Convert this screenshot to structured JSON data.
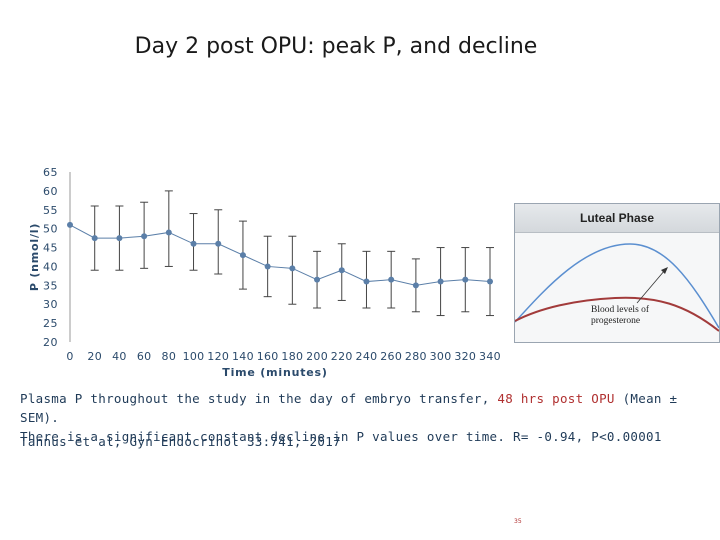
{
  "title": "Day 2 post OPU: peak P, and decline",
  "chart_data": {
    "type": "line",
    "title": "",
    "xlabel": "Time (minutes)",
    "ylabel": "P (nmol/l)",
    "xlim": [
      0,
      340
    ],
    "ylim": [
      20,
      65
    ],
    "xticks": [
      0,
      20,
      40,
      60,
      80,
      100,
      120,
      140,
      160,
      180,
      200,
      220,
      240,
      260,
      280,
      300,
      320,
      340
    ],
    "yticks": [
      20,
      25,
      30,
      35,
      40,
      45,
      50,
      55,
      60,
      65
    ],
    "grid": false,
    "series": [
      {
        "x": [
          0,
          20,
          40,
          60,
          80,
          100,
          120,
          140,
          160,
          180,
          200,
          220,
          240,
          260,
          280,
          300,
          320,
          340
        ],
        "y": [
          51,
          47.5,
          47.5,
          48,
          49,
          46,
          46,
          43,
          40,
          39.5,
          36.5,
          39,
          36,
          36.5,
          35,
          36,
          36.5,
          36
        ],
        "err_low": [
          51,
          39,
          39,
          39.5,
          40,
          39,
          38,
          34,
          32,
          30,
          29,
          31,
          29,
          29,
          28,
          27,
          28,
          27
        ],
        "err_high": [
          51,
          56,
          56,
          57,
          60,
          54,
          55,
          52,
          48,
          48,
          44,
          46,
          44,
          44,
          42,
          45,
          45,
          45
        ]
      }
    ],
    "color": "#5b7fa8"
  },
  "inset": {
    "title": "Luteal Phase",
    "label_line1": "Blood levels of",
    "label_line2": "progesterone"
  },
  "caption": {
    "line1_a": "Plasma P throughout the study in the day of embryo transfer,",
    "line1_highlight": "48 hrs post OPU",
    "line1_b": "(Mean ± SEM).",
    "line2": "There is a significant constant decline in P values over time.  R= -0.94, P<0.00001"
  },
  "citation": "Tannus et al, Gyn Endocrinol 33:741, 2017",
  "page_number": "35"
}
